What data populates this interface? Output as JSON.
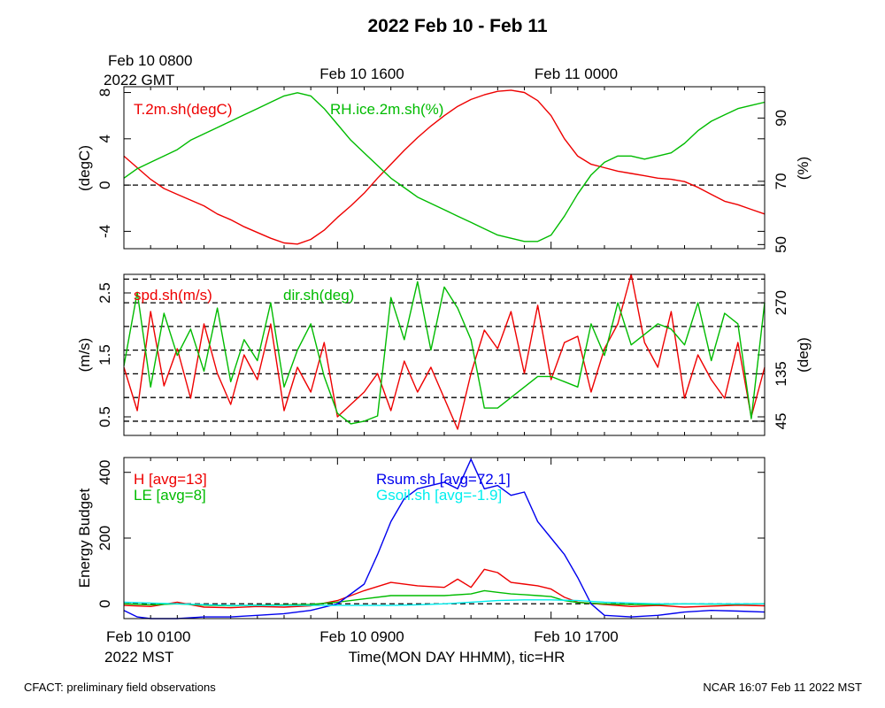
{
  "title": "2022 Feb 10 - Feb 11",
  "top_time_labels": {
    "first_line1": "Feb 10 0800",
    "first_line2": "2022 GMT",
    "second": "Feb 10 1600",
    "third": "Feb 11 0000"
  },
  "bottom_time_labels": {
    "first_line1": "Feb 10 0100",
    "first_line2": "2022 MST",
    "second": "Feb 10 0900",
    "third": "Feb 10 1700",
    "axis_title": "Time(MON DAY HHMM), tic=HR"
  },
  "footer": {
    "left": "CFACT: preliminary field observations",
    "right": "NCAR 16:07 Feb 11 2022 MST"
  },
  "colors": {
    "red": "#ee0000",
    "green": "#00bb00",
    "blue": "#0000ee",
    "cyan": "#00eeee",
    "black": "#000000"
  },
  "chart_data": [
    {
      "type": "line",
      "x_unit": "hours since Feb 10 0100 MST",
      "xlim": [
        0,
        24
      ],
      "ylabel": "(degC)",
      "ylim": [
        -5.5,
        8.5
      ],
      "yticks": [
        -4,
        0,
        4,
        8
      ],
      "y2label": "(%)",
      "y2lim": [
        48.7,
        99.9
      ],
      "y2ticks": [
        50,
        70,
        90
      ],
      "zero_line": 0,
      "series": [
        {
          "name": "T.2m.sh(degC)",
          "color": "red",
          "axis": "left",
          "x": [
            0,
            0.5,
            1,
            1.5,
            2,
            2.5,
            3,
            3.5,
            4,
            4.5,
            5,
            5.5,
            6,
            6.5,
            7,
            7.5,
            8,
            8.5,
            9,
            9.5,
            10,
            10.5,
            11,
            11.5,
            12,
            12.5,
            13,
            13.5,
            14,
            14.5,
            15,
            15.5,
            16,
            16.5,
            17,
            17.5,
            18,
            18.5,
            19,
            19.5,
            20,
            20.5,
            21,
            21.5,
            22,
            22.5,
            23,
            23.5,
            24
          ],
          "y": [
            2.5,
            1.5,
            0.5,
            -0.3,
            -0.8,
            -1.3,
            -1.8,
            -2.5,
            -3.0,
            -3.6,
            -4.1,
            -4.6,
            -5.0,
            -5.1,
            -4.7,
            -3.9,
            -2.8,
            -1.8,
            -0.7,
            0.6,
            1.8,
            3.0,
            4.1,
            5.1,
            6.0,
            6.8,
            7.4,
            7.8,
            8.1,
            8.2,
            8.0,
            7.3,
            6.0,
            4.0,
            2.5,
            1.8,
            1.5,
            1.2,
            1.0,
            0.8,
            0.6,
            0.5,
            0.3,
            -0.2,
            -0.8,
            -1.4,
            -1.7,
            -2.1,
            -2.5
          ]
        },
        {
          "name": "RH.ice.2m.sh(%)",
          "color": "green",
          "axis": "right",
          "x": [
            0,
            0.5,
            1,
            1.5,
            2,
            2.5,
            3,
            3.5,
            4,
            4.5,
            5,
            5.5,
            6,
            6.5,
            7,
            7.5,
            8,
            8.5,
            9,
            9.5,
            10,
            10.5,
            11,
            11.5,
            12,
            12.5,
            13,
            13.5,
            14,
            14.5,
            15,
            15.5,
            16,
            16.5,
            17,
            17.5,
            18,
            18.5,
            19,
            19.5,
            20,
            20.5,
            21,
            21.5,
            22,
            22.5,
            23,
            23.5,
            24
          ],
          "y": [
            71,
            74,
            76,
            78,
            80,
            83,
            85,
            87,
            89,
            91,
            93,
            95,
            97,
            98,
            97,
            93,
            88,
            83,
            79,
            75,
            71,
            68,
            65,
            63,
            61,
            59,
            57,
            55,
            53,
            52,
            51,
            51,
            53,
            59,
            66,
            72,
            76,
            78,
            78,
            77,
            78,
            79,
            82,
            86,
            89,
            91,
            93,
            94,
            95
          ]
        }
      ]
    },
    {
      "type": "line",
      "x_unit": "hours since Feb 10 0100 MST",
      "xlim": [
        0,
        24
      ],
      "ylabel": "(m/s)",
      "ylim": [
        0.2,
        2.8
      ],
      "yticks": [
        0.5,
        1.5,
        2.5
      ],
      "y2label": "(deg)",
      "y2lim": [
        18,
        324
      ],
      "y2ticks": [
        45,
        135,
        270
      ],
      "dashed_lines_deg": [
        45,
        90,
        135,
        180,
        225,
        270,
        315
      ],
      "series": [
        {
          "name": "spd.sh(m/s)",
          "color": "red",
          "axis": "left",
          "x": [
            0,
            0.5,
            1,
            1.5,
            2,
            2.5,
            3,
            3.5,
            4,
            4.5,
            5,
            5.5,
            6,
            6.5,
            7,
            7.5,
            8,
            8.5,
            9,
            9.5,
            10,
            10.5,
            11,
            11.5,
            12,
            12.5,
            13,
            13.5,
            14,
            14.5,
            15,
            15.5,
            16,
            16.5,
            17,
            17.5,
            18,
            18.5,
            19,
            19.5,
            20,
            20.5,
            21,
            21.5,
            22,
            22.5,
            23,
            23.5,
            24
          ],
          "y": [
            1.3,
            0.6,
            2.2,
            1.0,
            1.6,
            0.8,
            2.0,
            1.2,
            0.7,
            1.5,
            1.1,
            2.0,
            0.6,
            1.3,
            0.9,
            1.7,
            0.5,
            0.7,
            0.9,
            1.2,
            0.6,
            1.4,
            0.9,
            1.3,
            0.8,
            0.3,
            1.2,
            1.9,
            1.6,
            2.2,
            1.2,
            2.3,
            1.1,
            1.7,
            1.8,
            0.9,
            1.6,
            2.0,
            2.9,
            1.7,
            1.3,
            2.2,
            0.8,
            1.5,
            1.1,
            0.8,
            1.7,
            0.5,
            1.3
          ]
        },
        {
          "name": "dir.sh(deg)",
          "color": "green",
          "axis": "right",
          "x": [
            0,
            0.5,
            1,
            1.5,
            2,
            2.5,
            3,
            3.5,
            4,
            4.5,
            5,
            5.5,
            6,
            6.5,
            7,
            7.5,
            8,
            8.5,
            9,
            9.5,
            10,
            10.5,
            11,
            11.5,
            12,
            12.5,
            13,
            13.5,
            14,
            14.5,
            15,
            15.5,
            16,
            16.5,
            17,
            17.5,
            18,
            18.5,
            19,
            19.5,
            20,
            20.5,
            21,
            21.5,
            22,
            22.5,
            23,
            23.5,
            24
          ],
          "y": [
            150,
            290,
            110,
            250,
            170,
            220,
            140,
            260,
            120,
            200,
            160,
            270,
            110,
            180,
            230,
            130,
            60,
            40,
            45,
            55,
            280,
            200,
            310,
            180,
            300,
            260,
            200,
            70,
            70,
            90,
            110,
            130,
            130,
            120,
            110,
            230,
            170,
            270,
            190,
            210,
            230,
            220,
            190,
            270,
            160,
            250,
            230,
            50,
            270
          ]
        }
      ]
    },
    {
      "type": "line",
      "x_unit": "hours since Feb 10 0100 MST",
      "xlim": [
        0,
        24
      ],
      "ylabel": "Energy Budget",
      "ylim": [
        -45,
        445
      ],
      "yticks": [
        0,
        200,
        400
      ],
      "zero_line": 0,
      "series": [
        {
          "name": "H [avg=13]",
          "color": "red",
          "x": [
            0,
            1,
            2,
            3,
            4,
            5,
            6,
            7,
            8,
            9,
            10,
            11,
            12,
            12.5,
            13,
            13.5,
            14,
            14.5,
            15,
            15.5,
            16,
            16.5,
            17,
            18,
            19,
            20,
            21,
            22,
            23,
            24
          ],
          "y": [
            -5,
            -8,
            5,
            -10,
            -12,
            -8,
            -10,
            -6,
            10,
            40,
            65,
            55,
            50,
            75,
            50,
            105,
            95,
            65,
            60,
            55,
            45,
            20,
            5,
            -2,
            -8,
            -5,
            -10,
            -7,
            -4,
            -6
          ]
        },
        {
          "name": "LE [avg=8]",
          "color": "green",
          "x": [
            0,
            1,
            2,
            3,
            4,
            5,
            6,
            7,
            8,
            9,
            10,
            11,
            12,
            13,
            13.5,
            14,
            14.5,
            15,
            15.5,
            16,
            16.5,
            17,
            18,
            19,
            20,
            21,
            22,
            23,
            24
          ],
          "y": [
            0,
            -3,
            0,
            -4,
            -6,
            -4,
            -3,
            -2,
            5,
            15,
            25,
            25,
            25,
            30,
            40,
            35,
            30,
            28,
            25,
            22,
            10,
            4,
            0,
            -2,
            -2,
            0,
            -1,
            -1,
            0
          ],
          "label_color": "#00bb00"
        },
        {
          "name": "Rsum.sh [avg=72.1]",
          "color": "blue",
          "x": [
            0,
            0.5,
            1,
            2,
            3,
            4,
            5,
            6,
            7,
            8,
            9,
            9.5,
            10,
            10.5,
            11,
            11.5,
            12,
            12.5,
            13,
            13.5,
            14,
            14.5,
            15,
            15.5,
            16,
            16.5,
            17,
            17.5,
            18,
            19,
            20,
            21,
            22,
            23,
            24
          ],
          "y": [
            -20,
            -40,
            -45,
            -45,
            -40,
            -40,
            -35,
            -30,
            -20,
            0,
            60,
            150,
            250,
            320,
            350,
            360,
            370,
            350,
            440,
            350,
            360,
            330,
            340,
            250,
            200,
            150,
            80,
            0,
            -35,
            -40,
            -35,
            -25,
            -20,
            -22,
            -25
          ]
        },
        {
          "name": "Gsoil.sh [avg=-1.9]",
          "color": "cyan",
          "x": [
            0,
            2,
            4,
            6,
            8,
            9,
            10,
            11,
            12,
            13,
            14,
            15,
            16,
            17,
            18,
            20,
            22,
            24
          ],
          "y": [
            5,
            0,
            -5,
            -5,
            -5,
            -5,
            -5,
            -3,
            0,
            5,
            10,
            12,
            12,
            10,
            5,
            0,
            0,
            0
          ]
        }
      ]
    }
  ]
}
